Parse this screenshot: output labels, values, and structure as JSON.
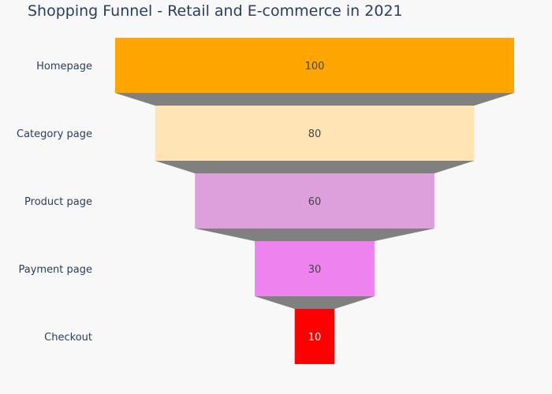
{
  "chart_data": {
    "type": "funnel",
    "title": "Shopping Funnel - Retail and E-commerce in 2021",
    "categories": [
      "Homepage",
      "Category page",
      "Product page",
      "Payment page",
      "Checkout"
    ],
    "values": [
      100,
      80,
      60,
      30,
      10
    ],
    "colors": [
      "#ffa500",
      "#ffe4b5",
      "#dda0dd",
      "#ee82ee",
      "#ff0000"
    ],
    "connector_color": "#808080",
    "value_text_colors": [
      "#444444",
      "#444444",
      "#444444",
      "#444444",
      "#ffffff"
    ],
    "background": "#f8f8f8"
  }
}
